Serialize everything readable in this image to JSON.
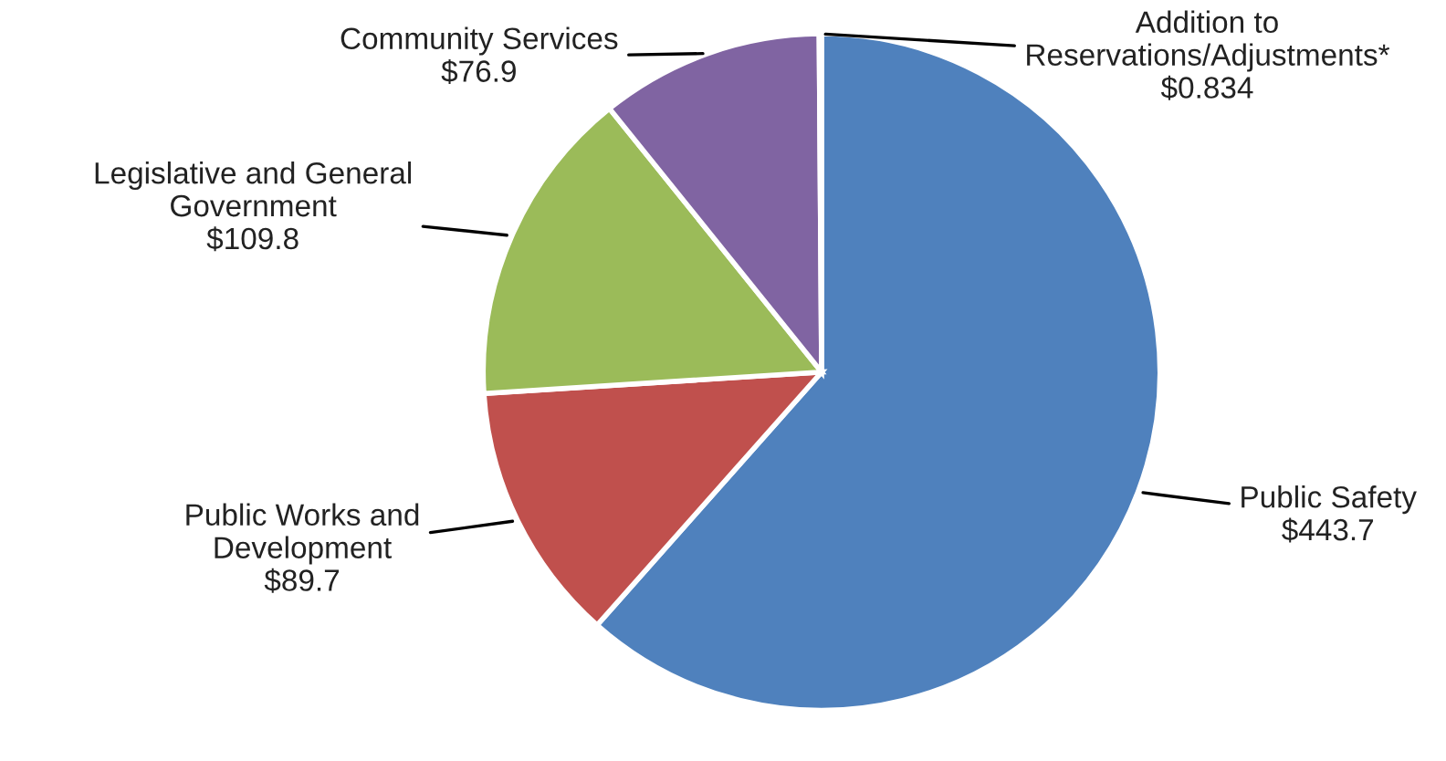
{
  "chart_data": {
    "type": "pie",
    "categories": [
      "Public Safety",
      "Public Works and\nDevelopment",
      "Legislative and General\nGovernment",
      "Community Services",
      "Addition to\nReservations/Adjustments*"
    ],
    "values": [
      443.7,
      89.7,
      109.8,
      76.9,
      0.834
    ],
    "value_labels": [
      "$443.7",
      "$89.7",
      "$109.8",
      "$76.9",
      "$0.834"
    ],
    "colors": [
      "#4f81bd",
      "#c0504d",
      "#9bbb59",
      "#8064a2",
      "#4bacc6"
    ],
    "legend": false
  }
}
